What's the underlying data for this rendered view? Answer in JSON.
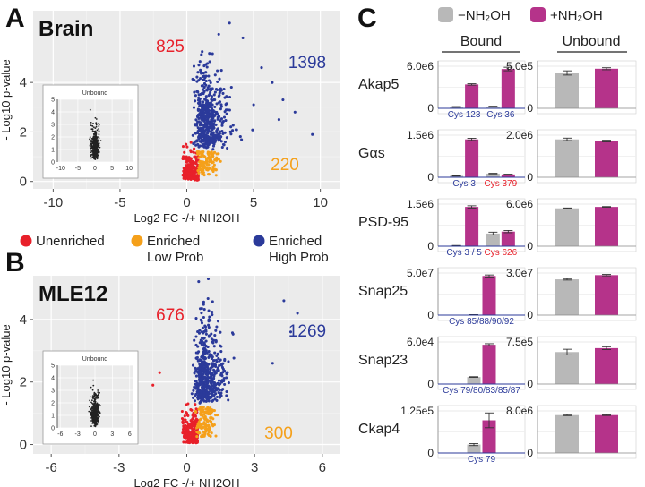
{
  "panels": {
    "a": {
      "letter": "A",
      "title": "Brain"
    },
    "b": {
      "letter": "B",
      "title": "MLE12"
    },
    "c": {
      "letter": "C"
    }
  },
  "legend_ab": [
    {
      "label": "Unenriched",
      "color": "#e8202a"
    },
    {
      "label": "Enriched\nLow Prob",
      "color": "#f5a01a"
    },
    {
      "label": "Enriched\nHigh Prob",
      "color": "#2b3a9a"
    }
  ],
  "legend_c": [
    {
      "label": "−NH₂OH",
      "color": "#b8b8b8"
    },
    {
      "label": "+NH₂OH",
      "color": "#b5338a"
    }
  ],
  "chart_data": [
    {
      "type": "scatter",
      "title": "Brain",
      "xlabel": "Log2 FC -/+ NH2OH",
      "ylabel": "- Log10 p-value",
      "xlim": [
        -11.5,
        11.5
      ],
      "ylim": [
        -0.3,
        6.9
      ],
      "xticks": [
        -10,
        -5,
        0,
        5,
        10
      ],
      "yticks": [
        0,
        2,
        4
      ],
      "grid": true,
      "counts": [
        {
          "label": "825",
          "color": "#e8202a"
        },
        {
          "label": "1398",
          "color": "#2b3a9a"
        },
        {
          "label": "220",
          "color": "#f5a01a"
        }
      ],
      "inset": {
        "title": "Unbound",
        "xlim": [
          -11,
          11
        ],
        "ylim": [
          0,
          5
        ],
        "xticks": [
          -10,
          -5,
          0,
          5,
          10
        ],
        "yticks": [
          0,
          1,
          2,
          3,
          4,
          5
        ]
      }
    },
    {
      "type": "scatter",
      "title": "MLE12",
      "xlabel": "Log2 FC -/+ NH2OH",
      "ylabel": "- Log10 p-value",
      "xlim": [
        -6.8,
        6.8
      ],
      "ylim": [
        -0.3,
        5.4
      ],
      "xticks": [
        -6,
        -3,
        0,
        3,
        6
      ],
      "yticks": [
        0,
        2,
        4
      ],
      "grid": true,
      "counts": [
        {
          "label": "676",
          "color": "#e8202a"
        },
        {
          "label": "1269",
          "color": "#2b3a9a"
        },
        {
          "label": "300",
          "color": "#f5a01a"
        }
      ],
      "inset": {
        "title": "Unbound",
        "xlim": [
          -6.5,
          6.5
        ],
        "ylim": [
          0,
          5
        ],
        "xticks": [
          -6,
          -3,
          0,
          3,
          6
        ],
        "yticks": [
          0,
          1,
          2,
          3,
          4,
          5
        ]
      }
    },
    {
      "type": "bar",
      "headers": {
        "bound": "Bound",
        "unbound": "Unbound"
      },
      "series": [
        {
          "name": "−NH₂OH"
        },
        {
          "name": "+NH₂OH"
        }
      ],
      "rows": [
        {
          "gene": "Akap5",
          "bound": {
            "ymax_label": "6.0e6",
            "ymax": 6000000.0,
            "groups": [
              {
                "cys": "Cys 123",
                "cys_color": "#2b3a9a",
                "values": [
                  200000.0,
                  3400000.0
                ],
                "err": [
                  50000.0,
                  100000.0
                ]
              },
              {
                "cys": "Cys 36",
                "cys_color": "#2b3a9a",
                "values": [
                  250000.0,
                  5600000.0
                ],
                "err": [
                  50000.0,
                  250000.0
                ]
              }
            ]
          },
          "unbound": {
            "ymax_label": "5.0e5",
            "ymax": 500000.0,
            "values": [
              420000.0,
              470000.0
            ],
            "err": [
              25000.0,
              12000.0
            ]
          }
        },
        {
          "gene": "Gαs",
          "bound": {
            "ymax_label": "1.5e6",
            "ymax": 1500000.0,
            "groups": [
              {
                "cys": "Cys 3",
                "cys_color": "#2b3a9a",
                "values": [
                  50000.0,
                  1350000.0
                ],
                "err": [
                  10000.0,
                  40000.0
                ]
              },
              {
                "cys": "Cys 379",
                "cys_color": "#e8202a",
                "values": [
                  130000.0,
                  100000.0
                ],
                "err": [
                  10000.0,
                  10000.0
                ]
              }
            ]
          },
          "unbound": {
            "ymax_label": "2.0e6",
            "ymax": 2000000.0,
            "values": [
              1800000.0,
              1720000.0
            ],
            "err": [
              60000.0,
              40000.0
            ]
          }
        },
        {
          "gene": "PSD-95",
          "bound": {
            "ymax_label": "1.5e6",
            "ymax": 1500000.0,
            "groups": [
              {
                "cys": "Cys 3 / 5",
                "cys_color": "#2b3a9a",
                "values": [
                  20000.0,
                  1400000.0
                ],
                "err": [
                  5000.0,
                  40000.0
                ]
              },
              {
                "cys": "Cys 626",
                "cys_color": "#e8202a",
                "values": [
                  450000.0,
                  520000.0
                ],
                "err": [
                  50000.0,
                  40000.0
                ]
              }
            ]
          },
          "unbound": {
            "ymax_label": "6.0e6",
            "ymax": 6000000.0,
            "values": [
              5400000.0,
              5600000.0
            ],
            "err": [
              50000.0,
              50000.0
            ]
          }
        },
        {
          "gene": "Snap25",
          "bound": {
            "ymax_label": "5.0e7",
            "ymax": 50000000.0,
            "groups": [
              {
                "cys": "Cys 85/88/90/92",
                "cys_color": "#2b3a9a",
                "values": [
                  500000.0,
                  46500000.0
                ],
                "err": [
                  100000.0,
                  1200000.0
                ]
              }
            ]
          },
          "unbound": {
            "ymax_label": "3.0e7",
            "ymax": 30000000.0,
            "values": [
              25500000.0,
              28500000.0
            ],
            "err": [
              500000.0,
              500000.0
            ]
          }
        },
        {
          "gene": "Snap23",
          "bound": {
            "ymax_label": "6.0e4",
            "ymax": 60000.0,
            "groups": [
              {
                "cys": "Cys 79/80/83/85/87",
                "cys_color": "#2b3a9a",
                "values": [
                  10000.0,
                  56000.0
                ],
                "err": [
                  500.0,
                  1500.0
                ]
              }
            ]
          },
          "unbound": {
            "ymax_label": "7.5e5",
            "ymax": 750000.0,
            "values": [
              570000.0,
              640000.0
            ],
            "err": [
              50000.0,
              25000.0
            ]
          }
        },
        {
          "gene": "Ckap4",
          "bound": {
            "ymax_label": "1.25e5",
            "ymax": 125000.0,
            "groups": [
              {
                "cys": "Cys 79",
                "cys_color": "#2b3a9a",
                "values": [
                  25000.0,
                  97000.0
                ],
                "err": [
                  3000.0,
                  22000.0
                ]
              }
            ]
          },
          "unbound": {
            "ymax_label": "8.0e6",
            "ymax": 8000000.0,
            "values": [
              7200000.0,
              7200000.0
            ],
            "err": [
              100000.0,
              80000.0
            ]
          }
        }
      ]
    }
  ]
}
